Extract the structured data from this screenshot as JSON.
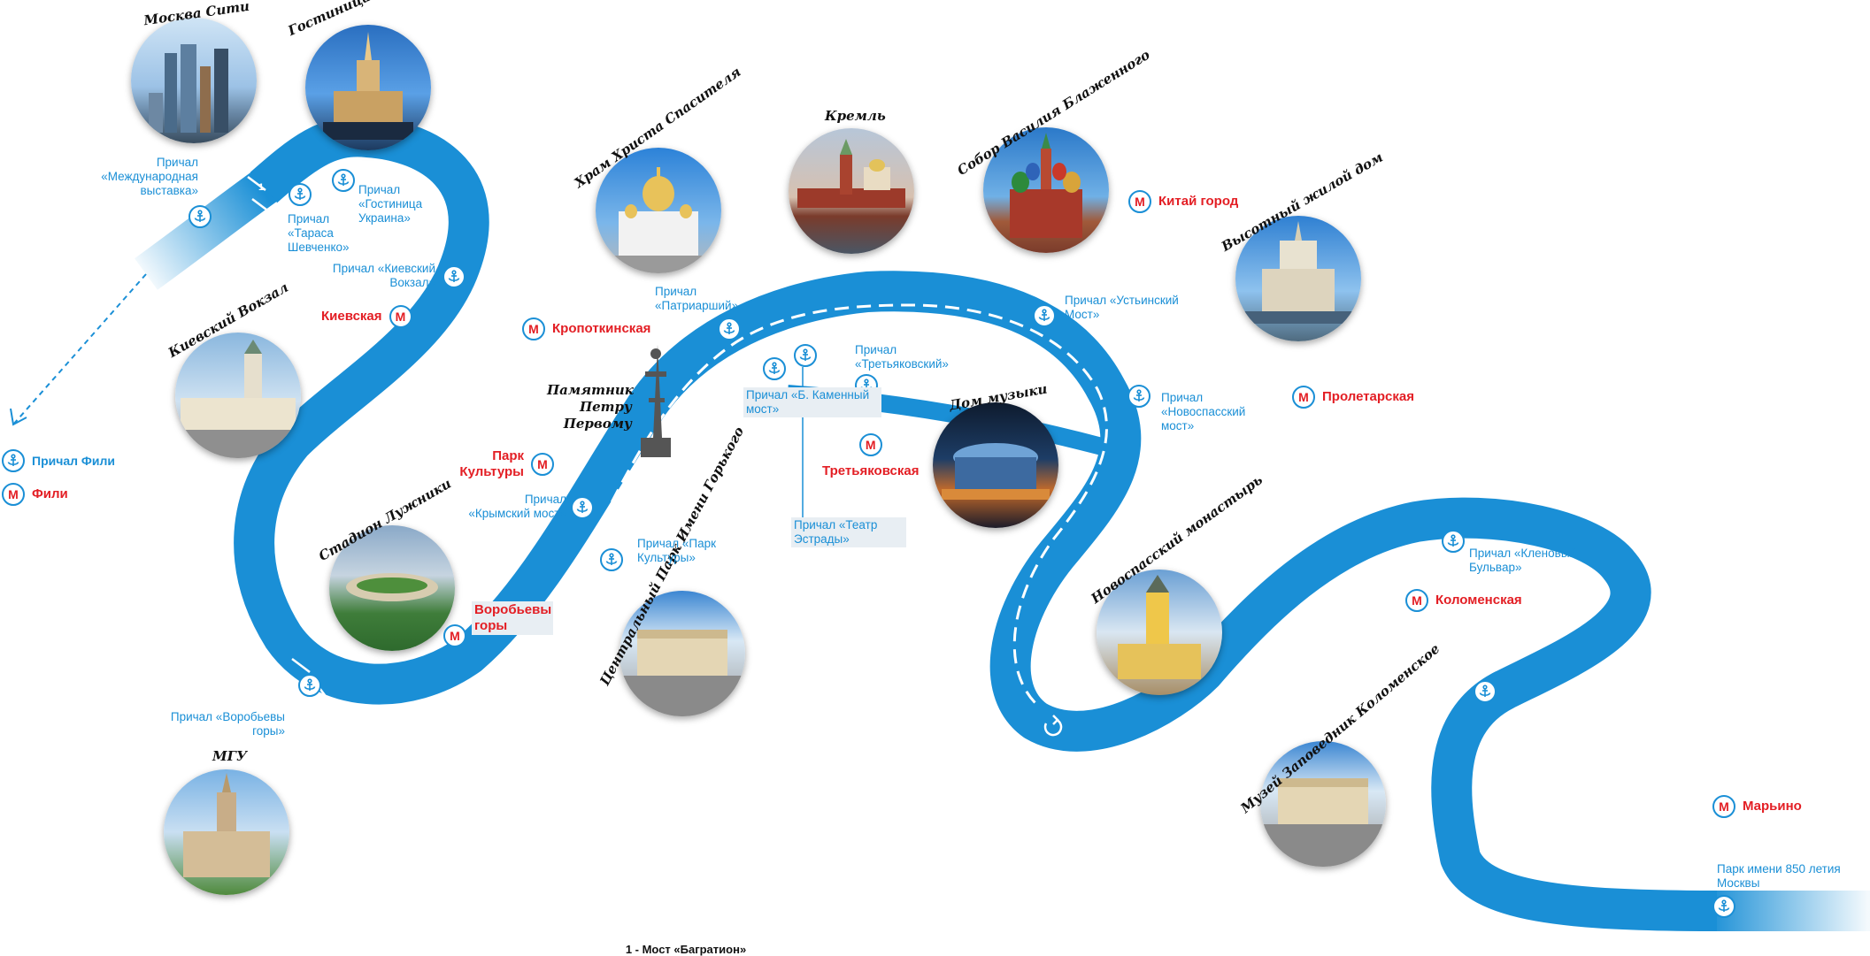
{
  "colors": {
    "river": "#1a8fd6",
    "route": "#ffffff",
    "metro": "#e31e24",
    "text": "#111111"
  },
  "footer": {
    "bridge_note": "1 - Мост «Багратион»"
  },
  "bridge_marker": "1",
  "landmarks": {
    "moskva_siti": "Москва Сити",
    "gostinica_ukraina": "Гостиница Украина",
    "hram": "Храм Христа Спасителя",
    "kreml": "Кремль",
    "sobor": "Собор Василия Блаженного",
    "vysotny": "Высотный жилой дом",
    "kievsky": "Киевский Вокзал",
    "pamyatnik": "Памятник Петру Первому",
    "dom_muzyki": "Дом музыки",
    "luzhniki": "Стадион Лужники",
    "park_gorkogo": "Центральный Парк Имени Горького",
    "novospassky": "Новоспасский монастырь",
    "kolomenskoe": "Музей Заповедник Коломенское",
    "mgu": "МГУ"
  },
  "piers": {
    "mezhdunarodnaya": "Причал «Международная выставка»",
    "tarasa": "Причал «Тараса Шевченко»",
    "ukraina": "Причал «Гостиница Украина»",
    "kievsky": "Причал «Киевский Вокзал»",
    "patriarshy": "Причал «Патриарший»",
    "ustinsky": "Причал «Устьинский Мост»",
    "tretyakovsky": "Причал «Третьяковский»",
    "kamenny": "Причал «Б. Каменный мост»",
    "novospassky": "Причал «Новоспасский мост»",
    "krymsky": "Причал «Крымский мост»",
    "park_kultury": "Причал «Парк Культуры»",
    "teatr": "Причал «Театр Эстрады»",
    "klenovy": "Причал «Кленовый Бульвар»",
    "vorobyovy": "Причал «Воробьевы горы»",
    "park850": "Парк имени 850 летия Москвы",
    "fili": "Причал Фили"
  },
  "metro": {
    "symbol": "М",
    "kitay_gorod": "Китай город",
    "kievskaya": "Киевская",
    "kropotkinskaya": "Кропоткинская",
    "proletarskaya": "Пролетарская",
    "park_kultury": "Парк Культуры",
    "tretyakovskaya": "Третьяковская",
    "vorobyovy": "Воробьевы горы",
    "kolomenskaya": "Коломенская",
    "maryino": "Марьино",
    "fili": "Фили"
  }
}
